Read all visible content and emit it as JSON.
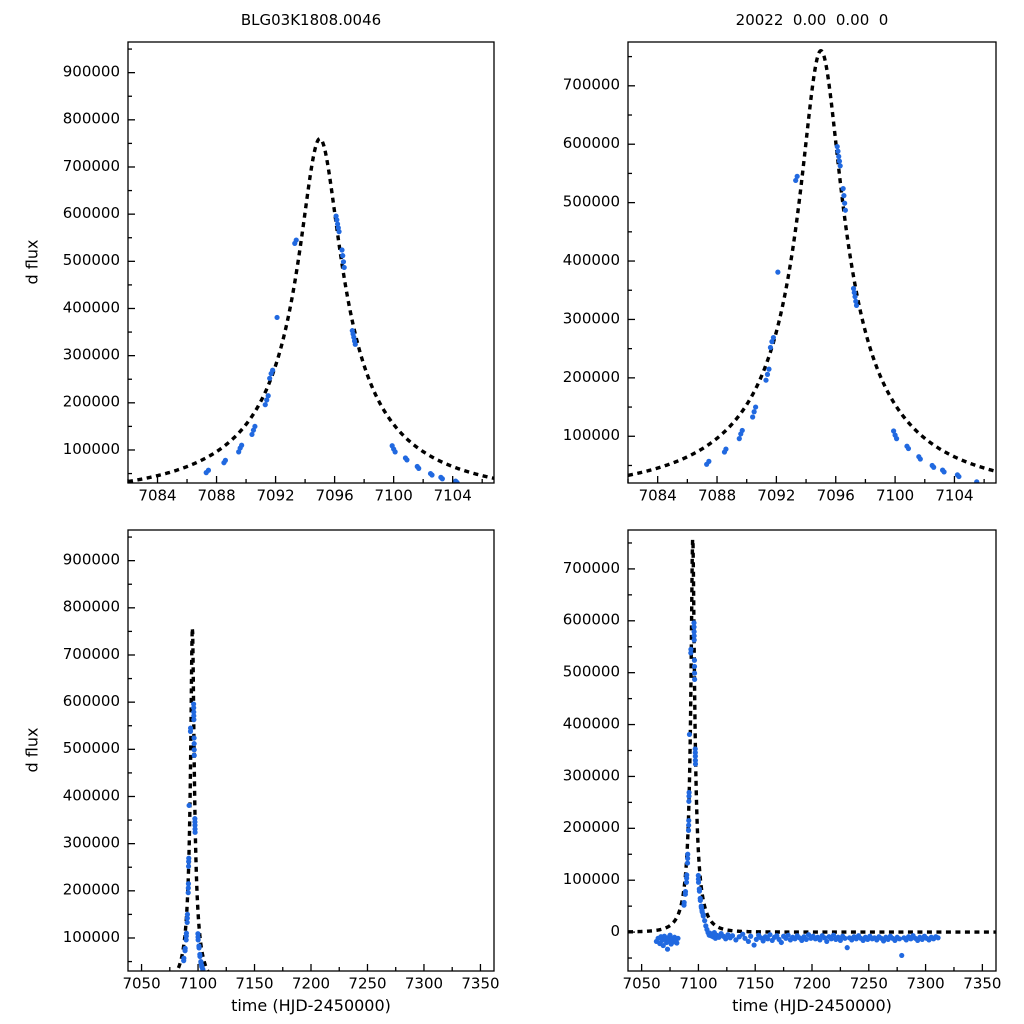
{
  "colors": {
    "point": "#2169e0",
    "model": "#000000",
    "axis": "#000000",
    "background": "#ffffff"
  },
  "labels": {
    "title_left": "BLG03K1808.0046",
    "title_right": "20022  0.00  0.00  0",
    "ylabel": "d flux",
    "xlabel": "time (HJD-2450000)"
  },
  "model": {
    "type": "paczynski_difference_flux",
    "t0": 7095.0,
    "tE": 14.0,
    "u0": 0.1,
    "fs": 84100,
    "peak_flux": 760000,
    "line_style": "dashed"
  },
  "datasets": {
    "event": [
      [
        7087.3,
        52000
      ],
      [
        7087.45,
        57000
      ],
      [
        7088.5,
        73000
      ],
      [
        7088.6,
        78000
      ],
      [
        7089.5,
        96000
      ],
      [
        7089.6,
        104000
      ],
      [
        7089.7,
        110000
      ],
      [
        7090.4,
        133000
      ],
      [
        7090.5,
        142000
      ],
      [
        7090.6,
        150000
      ],
      [
        7091.3,
        196000
      ],
      [
        7091.4,
        206000
      ],
      [
        7091.5,
        215000
      ],
      [
        7091.6,
        252000
      ],
      [
        7091.7,
        262000
      ],
      [
        7091.8,
        269000
      ],
      [
        7092.1,
        381000
      ],
      [
        7093.3,
        538000
      ],
      [
        7093.4,
        545000
      ],
      [
        7096.1,
        596000
      ],
      [
        7096.15,
        588000
      ],
      [
        7096.2,
        579000
      ],
      [
        7096.25,
        571000
      ],
      [
        7096.3,
        563000
      ],
      [
        7096.5,
        524000
      ],
      [
        7096.55,
        512000
      ],
      [
        7096.6,
        499000
      ],
      [
        7096.65,
        487000
      ],
      [
        7097.2,
        353000
      ],
      [
        7097.25,
        346000
      ],
      [
        7097.3,
        339000
      ],
      [
        7097.35,
        331000
      ],
      [
        7097.4,
        324000
      ],
      [
        7099.9,
        109000
      ],
      [
        7100.0,
        102000
      ],
      [
        7100.1,
        96000
      ],
      [
        7100.8,
        83000
      ],
      [
        7100.9,
        79000
      ],
      [
        7101.6,
        65000
      ],
      [
        7101.7,
        61000
      ],
      [
        7102.5,
        50000
      ],
      [
        7102.6,
        47000
      ],
      [
        7103.2,
        42000
      ],
      [
        7103.3,
        39000
      ],
      [
        7104.2,
        34000
      ],
      [
        7104.3,
        31000
      ]
    ],
    "baseline": [
      [
        7063,
        -18000
      ],
      [
        7064.5,
        -12000
      ],
      [
        7066,
        -22000
      ],
      [
        7067,
        -9000
      ],
      [
        7068,
        -16000
      ],
      [
        7069,
        -26000
      ],
      [
        7070,
        -8000
      ],
      [
        7071,
        -14000
      ],
      [
        7072,
        -20000
      ],
      [
        7072.8,
        -33000
      ],
      [
        7073,
        -11000
      ],
      [
        7074,
        -17000
      ],
      [
        7075,
        -6000
      ],
      [
        7076,
        -23000
      ],
      [
        7077,
        -13000
      ],
      [
        7078,
        -19000
      ],
      [
        7079,
        -10000
      ],
      [
        7080,
        -15000
      ],
      [
        7081,
        -21000
      ],
      [
        7082,
        -12000
      ],
      [
        7105.5,
        22000
      ],
      [
        7106.5,
        12000
      ],
      [
        7107.5,
        5000
      ],
      [
        7108.5,
        -1000
      ],
      [
        7109.5,
        -6000
      ],
      [
        7110,
        -2000
      ],
      [
        7111,
        -7000
      ],
      [
        7112,
        -4000
      ],
      [
        7113,
        -9000
      ],
      [
        7114,
        -1000
      ],
      [
        7115,
        -12000
      ],
      [
        7116,
        -6000
      ],
      [
        7118,
        -10000
      ],
      [
        7120,
        -3000
      ],
      [
        7122,
        -8000
      ],
      [
        7124,
        -13000
      ],
      [
        7126,
        -5000
      ],
      [
        7128,
        -11000
      ],
      [
        7130,
        -7000
      ],
      [
        7133,
        -15000
      ],
      [
        7136,
        -9000
      ],
      [
        7139,
        -4000
      ],
      [
        7141,
        -12000
      ],
      [
        7144,
        -18000
      ],
      [
        7146,
        -8000
      ],
      [
        7149,
        -25000
      ],
      [
        7151,
        -14000
      ],
      [
        7153,
        -6000
      ],
      [
        7155,
        -11000
      ],
      [
        7157,
        -17000
      ],
      [
        7159,
        -9000
      ],
      [
        7161,
        -13000
      ],
      [
        7163,
        -5000
      ],
      [
        7165,
        -16000
      ],
      [
        7167,
        -10000
      ],
      [
        7169,
        -7000
      ],
      [
        7171,
        -14000
      ],
      [
        7173,
        -20000
      ],
      [
        7175,
        -8000
      ],
      [
        7177,
        -12000
      ],
      [
        7179,
        -6000
      ],
      [
        7181,
        -15000
      ],
      [
        7183,
        -10000
      ],
      [
        7185,
        -13000
      ],
      [
        7187,
        -7000
      ],
      [
        7189,
        -11000
      ],
      [
        7191,
        -16000
      ],
      [
        7193,
        -9000
      ],
      [
        7195,
        -14000
      ],
      [
        7197,
        -5000
      ],
      [
        7199,
        -12000
      ],
      [
        7201,
        -8000
      ],
      [
        7203,
        -13000
      ],
      [
        7205,
        -10000
      ],
      [
        7207,
        -15000
      ],
      [
        7209,
        -7000
      ],
      [
        7211,
        -11000
      ],
      [
        7213,
        -18000
      ],
      [
        7215,
        -9000
      ],
      [
        7217,
        -13000
      ],
      [
        7219,
        -6000
      ],
      [
        7221,
        -14000
      ],
      [
        7223,
        -10000
      ],
      [
        7225,
        -16000
      ],
      [
        7227,
        -8000
      ],
      [
        7229,
        -12000
      ],
      [
        7231,
        -30000
      ],
      [
        7233,
        -11000
      ],
      [
        7235,
        -15000
      ],
      [
        7237,
        -9000
      ],
      [
        7239,
        -13000
      ],
      [
        7241,
        -7000
      ],
      [
        7243,
        -12000
      ],
      [
        7245,
        -16000
      ],
      [
        7247,
        -10000
      ],
      [
        7249,
        -14000
      ],
      [
        7251,
        -8000
      ],
      [
        7253,
        -13000
      ],
      [
        7255,
        -11000
      ],
      [
        7257,
        -15000
      ],
      [
        7259,
        -9000
      ],
      [
        7261,
        -12000
      ],
      [
        7263,
        -17000
      ],
      [
        7265,
        -10000
      ],
      [
        7267,
        -14000
      ],
      [
        7269,
        -8000
      ],
      [
        7271,
        -12000
      ],
      [
        7273,
        -16000
      ],
      [
        7275,
        -10000
      ],
      [
        7277,
        -13000
      ],
      [
        7279,
        -45000
      ],
      [
        7281,
        -11000
      ],
      [
        7283,
        -15000
      ],
      [
        7285,
        -9000
      ],
      [
        7287,
        -13000
      ],
      [
        7289,
        -7000
      ],
      [
        7291,
        -12000
      ],
      [
        7293,
        -16000
      ],
      [
        7295,
        -10000
      ],
      [
        7297,
        -14000
      ],
      [
        7299,
        -8000
      ],
      [
        7301,
        -12000
      ],
      [
        7303,
        -15000
      ],
      [
        7305,
        -10000
      ],
      [
        7307,
        -13000
      ],
      [
        7309,
        -9000
      ],
      [
        7311,
        -11000
      ]
    ]
  },
  "chart_data": [
    {
      "id": "panel-top-left-canvas",
      "type": "scatter",
      "title": "BLG03K1808.0046",
      "xlabel": "",
      "ylabel": "d flux",
      "xlim": [
        7082,
        7106.8
      ],
      "ylim": [
        30000,
        965000
      ],
      "xticks": [
        7084,
        7088,
        7092,
        7096,
        7100,
        7104
      ],
      "yticks": [
        100000,
        200000,
        300000,
        400000,
        500000,
        600000,
        700000,
        800000,
        900000
      ],
      "xminor": 2,
      "yminor": 50000,
      "box": {
        "l": 128,
        "r": 18,
        "t": 42,
        "b": 29
      },
      "series": [
        "event",
        "baseline"
      ],
      "show_model": true,
      "grid": false,
      "legend": "none"
    },
    {
      "id": "panel-top-right-canvas",
      "type": "scatter",
      "title": "20022  0.00  0.00  0",
      "xlabel": "",
      "ylabel": "",
      "xlim": [
        7082,
        7106.8
      ],
      "ylim": [
        20000,
        775000
      ],
      "xticks": [
        7084,
        7088,
        7092,
        7096,
        7100,
        7104
      ],
      "yticks": [
        100000,
        200000,
        300000,
        400000,
        500000,
        600000,
        700000
      ],
      "xminor": 2,
      "yminor": 50000,
      "box": {
        "l": 116,
        "r": 28,
        "t": 42,
        "b": 29
      },
      "series": [
        "event",
        "baseline"
      ],
      "show_model": true,
      "grid": false,
      "legend": "none"
    },
    {
      "id": "panel-bottom-left-canvas",
      "type": "scatter",
      "title": "",
      "xlabel": "time (HJD-2450000)",
      "ylabel": "d flux",
      "xlim": [
        7038,
        7362
      ],
      "ylim": [
        30000,
        965000
      ],
      "xticks": [
        7050,
        7100,
        7150,
        7200,
        7250,
        7300,
        7350
      ],
      "yticks": [
        100000,
        200000,
        300000,
        400000,
        500000,
        600000,
        700000,
        800000,
        900000
      ],
      "xminor": 25,
      "yminor": 50000,
      "box": {
        "l": 128,
        "r": 18,
        "t": 18,
        "b": 53
      },
      "series": [
        "event",
        "baseline"
      ],
      "show_model": true,
      "grid": false,
      "legend": "none"
    },
    {
      "id": "panel-bottom-right-canvas",
      "type": "scatter",
      "title": "",
      "xlabel": "time (HJD-2450000)",
      "ylabel": "",
      "xlim": [
        7038,
        7362
      ],
      "ylim": [
        -75000,
        775000
      ],
      "xticks": [
        7050,
        7100,
        7150,
        7200,
        7250,
        7300,
        7350
      ],
      "yticks": [
        0,
        100000,
        200000,
        300000,
        400000,
        500000,
        600000,
        700000
      ],
      "xminor": 25,
      "yminor": 50000,
      "box": {
        "l": 116,
        "r": 28,
        "t": 18,
        "b": 53
      },
      "series": [
        "event",
        "baseline"
      ],
      "show_model": true,
      "grid": false,
      "legend": "none"
    }
  ]
}
